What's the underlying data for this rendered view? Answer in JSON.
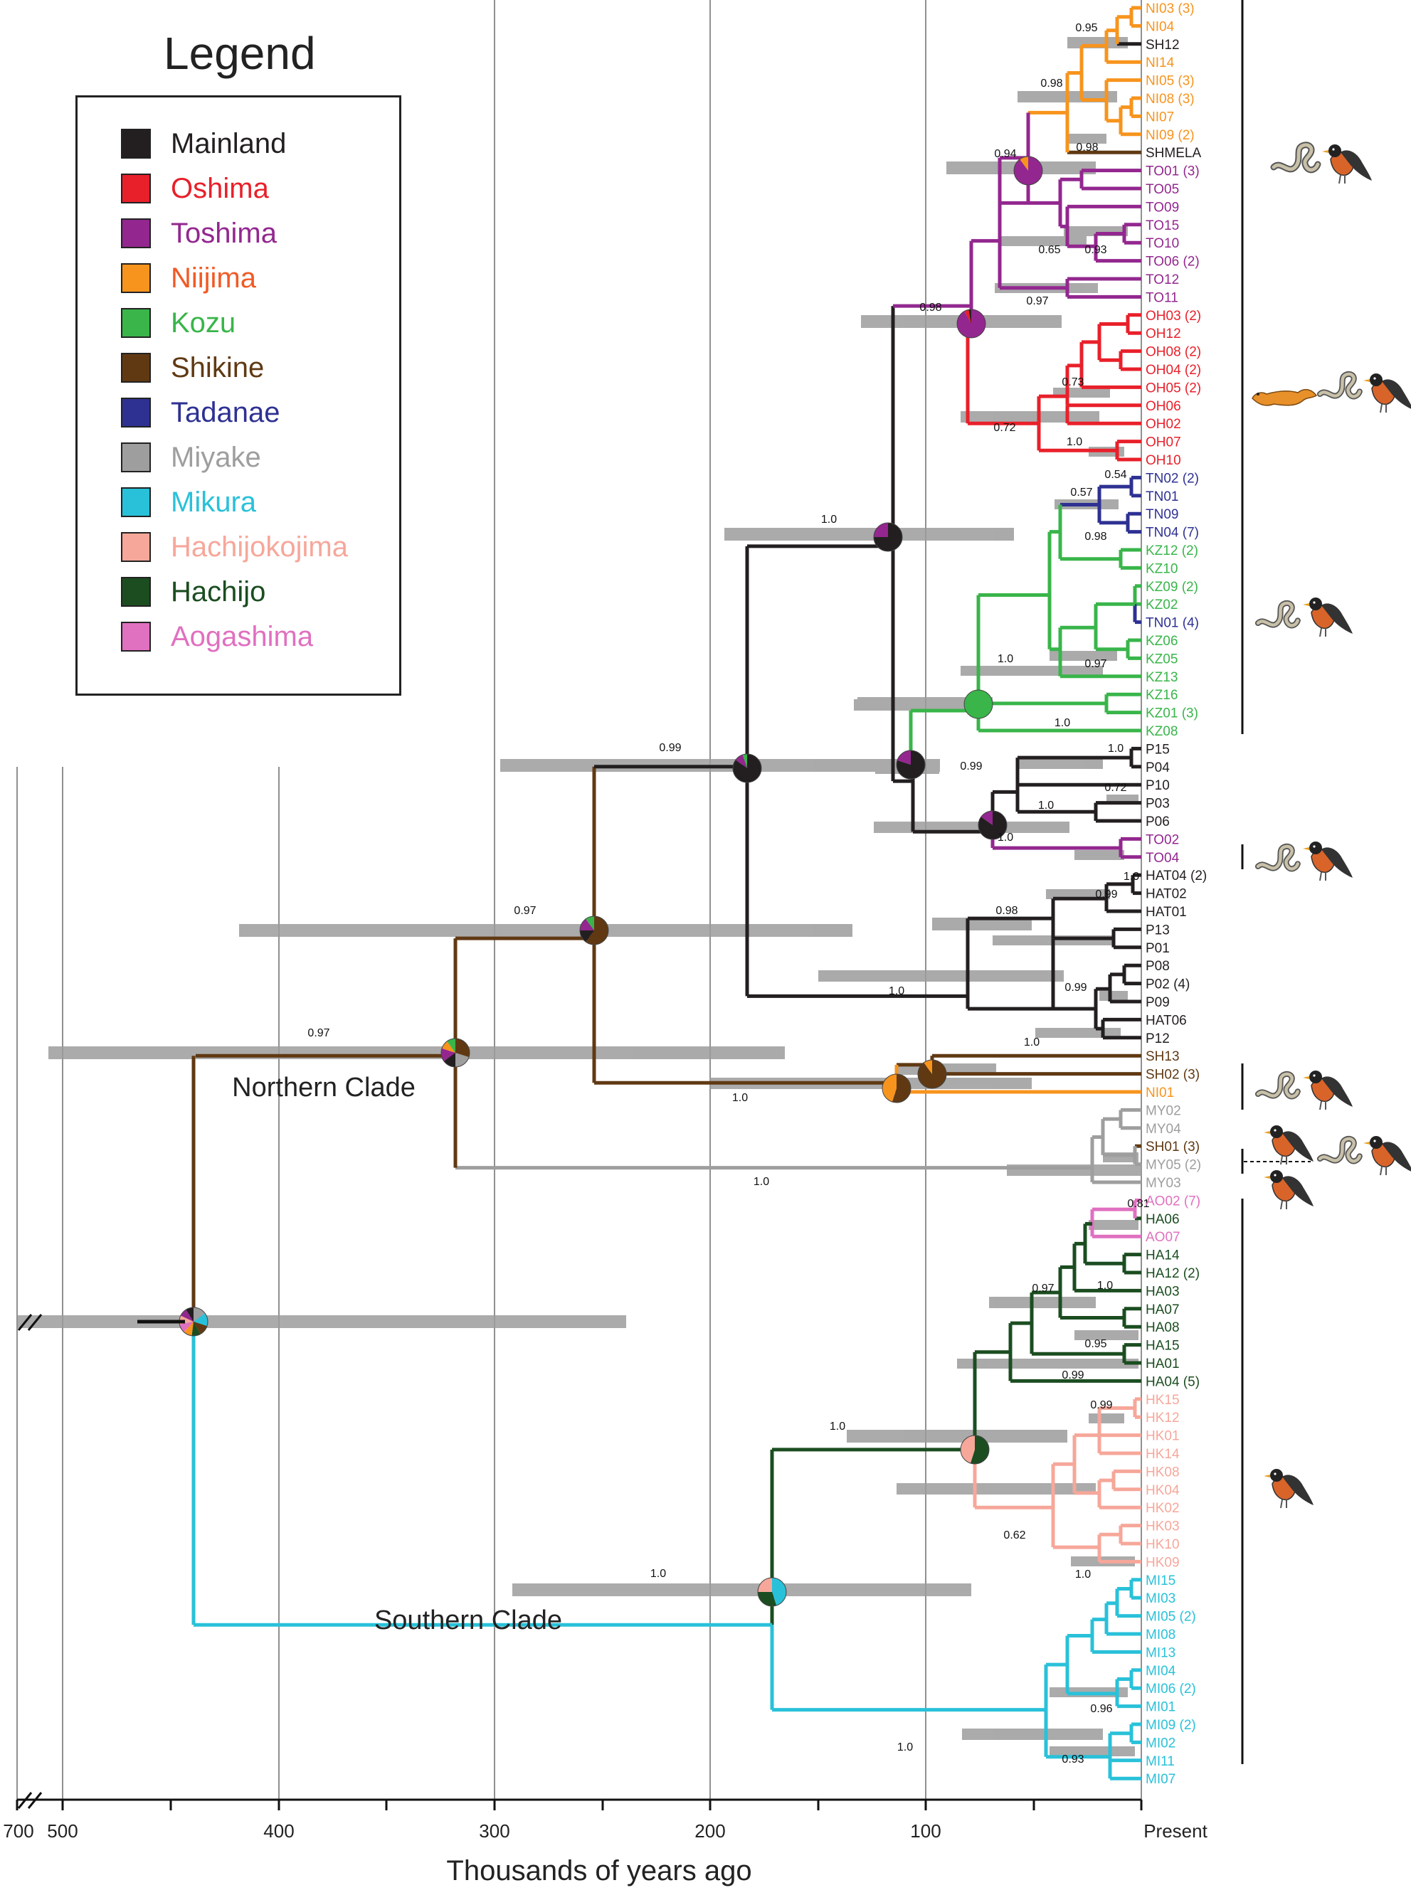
{
  "legend": {
    "title": "Legend",
    "items": [
      {
        "label": "Mainland",
        "color": "#231f20",
        "text_color": "#231f20"
      },
      {
        "label": "Oshima",
        "color": "#e8202a",
        "text_color": "#e8202a"
      },
      {
        "label": "Toshima",
        "color": "#93278f",
        "text_color": "#93278f"
      },
      {
        "label": "Niijima",
        "color": "#f7941d",
        "text_color": "#f15a24"
      },
      {
        "label": "Kozu",
        "color": "#39b54a",
        "text_color": "#39b54a"
      },
      {
        "label": "Shikine",
        "color": "#603913",
        "text_color": "#603913"
      },
      {
        "label": "Tadanae",
        "color": "#2e3192",
        "text_color": "#2e3192"
      },
      {
        "label": "Miyake",
        "color": "#9e9e9e",
        "text_color": "#9e9e9e"
      },
      {
        "label": "Mikura",
        "color": "#29c1d9",
        "text_color": "#29c1d9"
      },
      {
        "label": "Hachijokojima",
        "color": "#f6a79a",
        "text_color": "#f6a79a"
      },
      {
        "label": "Hachijo",
        "color": "#1b4d20",
        "text_color": "#1b4d20"
      },
      {
        "label": "Aogashima",
        "color": "#e070c0",
        "text_color": "#e070c0"
      }
    ]
  },
  "axis": {
    "title": "Thousands of years ago",
    "ticks": [
      {
        "label": "700",
        "value": 700
      },
      {
        "label": "500",
        "value": 500
      },
      {
        "label": "400",
        "value": 400
      },
      {
        "label": "300",
        "value": 300
      },
      {
        "label": "200",
        "value": 200
      },
      {
        "label": "100",
        "value": 100
      },
      {
        "label": "Present",
        "value": 0
      }
    ]
  },
  "clades": [
    {
      "label": "Northern Clade"
    },
    {
      "label": "Southern Clade"
    }
  ],
  "tips": [
    {
      "label": "NI03 (3)",
      "color": "#f7941d"
    },
    {
      "label": "NI04",
      "color": "#f7941d"
    },
    {
      "label": "SH12",
      "color": "#231f20"
    },
    {
      "label": "NI14",
      "color": "#f7941d"
    },
    {
      "label": "NI05 (3)",
      "color": "#f7941d"
    },
    {
      "label": "NI08 (3)",
      "color": "#f7941d"
    },
    {
      "label": "NI07",
      "color": "#f7941d"
    },
    {
      "label": "NI09 (2)",
      "color": "#f7941d"
    },
    {
      "label": "SHMELA",
      "color": "#231f20"
    },
    {
      "label": "TO01 (3)",
      "color": "#93278f"
    },
    {
      "label": "TO05",
      "color": "#93278f"
    },
    {
      "label": "TO09",
      "color": "#93278f"
    },
    {
      "label": "TO15",
      "color": "#93278f"
    },
    {
      "label": "TO10",
      "color": "#93278f"
    },
    {
      "label": "TO06 (2)",
      "color": "#93278f"
    },
    {
      "label": "TO12",
      "color": "#93278f"
    },
    {
      "label": "TO11",
      "color": "#93278f"
    },
    {
      "label": "OH03 (2)",
      "color": "#e8202a"
    },
    {
      "label": "OH12",
      "color": "#e8202a"
    },
    {
      "label": "OH08 (2)",
      "color": "#e8202a"
    },
    {
      "label": "OH04 (2)",
      "color": "#e8202a"
    },
    {
      "label": "OH05 (2)",
      "color": "#e8202a"
    },
    {
      "label": "OH06",
      "color": "#e8202a"
    },
    {
      "label": "OH02",
      "color": "#e8202a"
    },
    {
      "label": "OH07",
      "color": "#e8202a"
    },
    {
      "label": "OH10",
      "color": "#e8202a"
    },
    {
      "label": "TN02 (2)",
      "color": "#2e3192"
    },
    {
      "label": "TN01",
      "color": "#2e3192"
    },
    {
      "label": "TN09",
      "color": "#2e3192"
    },
    {
      "label": "TN04 (7)",
      "color": "#2e3192"
    },
    {
      "label": "KZ12 (2)",
      "color": "#39b54a"
    },
    {
      "label": "KZ10",
      "color": "#39b54a"
    },
    {
      "label": "KZ09 (2)",
      "color": "#39b54a"
    },
    {
      "label": "KZ02",
      "color": "#39b54a"
    },
    {
      "label": "TN01 (4)",
      "color": "#2e3192"
    },
    {
      "label": "KZ06",
      "color": "#39b54a"
    },
    {
      "label": "KZ05",
      "color": "#39b54a"
    },
    {
      "label": "KZ13",
      "color": "#39b54a"
    },
    {
      "label": "KZ16",
      "color": "#39b54a"
    },
    {
      "label": "KZ01 (3)",
      "color": "#39b54a"
    },
    {
      "label": "KZ08",
      "color": "#39b54a"
    },
    {
      "label": "P15",
      "color": "#231f20"
    },
    {
      "label": "P04",
      "color": "#231f20"
    },
    {
      "label": "P10",
      "color": "#231f20"
    },
    {
      "label": "P03",
      "color": "#231f20"
    },
    {
      "label": "P06",
      "color": "#231f20"
    },
    {
      "label": "TO02",
      "color": "#93278f"
    },
    {
      "label": "TO04",
      "color": "#93278f"
    },
    {
      "label": "HAT04 (2)",
      "color": "#231f20"
    },
    {
      "label": "HAT02",
      "color": "#231f20"
    },
    {
      "label": "HAT01",
      "color": "#231f20"
    },
    {
      "label": "P13",
      "color": "#231f20"
    },
    {
      "label": "P01",
      "color": "#231f20"
    },
    {
      "label": "P08",
      "color": "#231f20"
    },
    {
      "label": "P02 (4)",
      "color": "#231f20"
    },
    {
      "label": "P09",
      "color": "#231f20"
    },
    {
      "label": "HAT06",
      "color": "#231f20"
    },
    {
      "label": "P12",
      "color": "#231f20"
    },
    {
      "label": "SH13",
      "color": "#603913"
    },
    {
      "label": "SH02 (3)",
      "color": "#603913"
    },
    {
      "label": "NI01",
      "color": "#f7941d"
    },
    {
      "label": "MY02",
      "color": "#9e9e9e"
    },
    {
      "label": "MY04",
      "color": "#9e9e9e"
    },
    {
      "label": "SH01 (3)",
      "color": "#603913"
    },
    {
      "label": "MY05 (2)",
      "color": "#9e9e9e"
    },
    {
      "label": "MY03",
      "color": "#9e9e9e"
    },
    {
      "label": "AO02 (7)",
      "color": "#e070c0"
    },
    {
      "label": "HA06",
      "color": "#1b4d20"
    },
    {
      "label": "AO07",
      "color": "#e070c0"
    },
    {
      "label": "HA14",
      "color": "#1b4d20"
    },
    {
      "label": "HA12 (2)",
      "color": "#1b4d20"
    },
    {
      "label": "HA03",
      "color": "#1b4d20"
    },
    {
      "label": "HA07",
      "color": "#1b4d20"
    },
    {
      "label": "HA08",
      "color": "#1b4d20"
    },
    {
      "label": "HA15",
      "color": "#1b4d20"
    },
    {
      "label": "HA01",
      "color": "#1b4d20"
    },
    {
      "label": "HA04 (5)",
      "color": "#1b4d20"
    },
    {
      "label": "HK15",
      "color": "#f6a79a"
    },
    {
      "label": "HK12",
      "color": "#f6a79a"
    },
    {
      "label": "HK01",
      "color": "#f6a79a"
    },
    {
      "label": "HK14",
      "color": "#f6a79a"
    },
    {
      "label": "HK08",
      "color": "#f6a79a"
    },
    {
      "label": "HK04",
      "color": "#f6a79a"
    },
    {
      "label": "HK02",
      "color": "#f6a79a"
    },
    {
      "label": "HK03",
      "color": "#f6a79a"
    },
    {
      "label": "HK10",
      "color": "#f6a79a"
    },
    {
      "label": "HK09",
      "color": "#f6a79a"
    },
    {
      "label": "MI15",
      "color": "#29c1d9"
    },
    {
      "label": "MI03",
      "color": "#29c1d9"
    },
    {
      "label": "MI05 (2)",
      "color": "#29c1d9"
    },
    {
      "label": "MI08",
      "color": "#29c1d9"
    },
    {
      "label": "MI13",
      "color": "#29c1d9"
    },
    {
      "label": "MI04",
      "color": "#29c1d9"
    },
    {
      "label": "MI06 (2)",
      "color": "#29c1d9"
    },
    {
      "label": "MI01",
      "color": "#29c1d9"
    },
    {
      "label": "MI09 (2)",
      "color": "#29c1d9"
    },
    {
      "label": "MI02",
      "color": "#29c1d9"
    },
    {
      "label": "MI11",
      "color": "#29c1d9"
    },
    {
      "label": "MI07",
      "color": "#29c1d9"
    }
  ],
  "support_values": [
    "0.95",
    "0.98",
    "0.98",
    "0.94",
    "0.65",
    "0.93",
    "0.97",
    "0.98",
    "0.73",
    "0.72",
    "1.0",
    "0.54",
    "0.57",
    "0.98",
    "1.0",
    "1.0",
    "0.97",
    "0.99",
    "1.0",
    "0.99",
    "1.0",
    "0.72",
    "1.0",
    "1.0",
    "1.0",
    "0.99",
    "0.98",
    "0.99",
    "1.0",
    "1.0",
    "0.97",
    "0.97",
    "1.0",
    "1.0",
    "0.81",
    "1.0",
    "0.97",
    "0.95",
    "0.99",
    "0.99",
    "1.0",
    "0.62",
    "1.0",
    "1.0",
    "0.96",
    "1.0",
    "0.93"
  ]
}
